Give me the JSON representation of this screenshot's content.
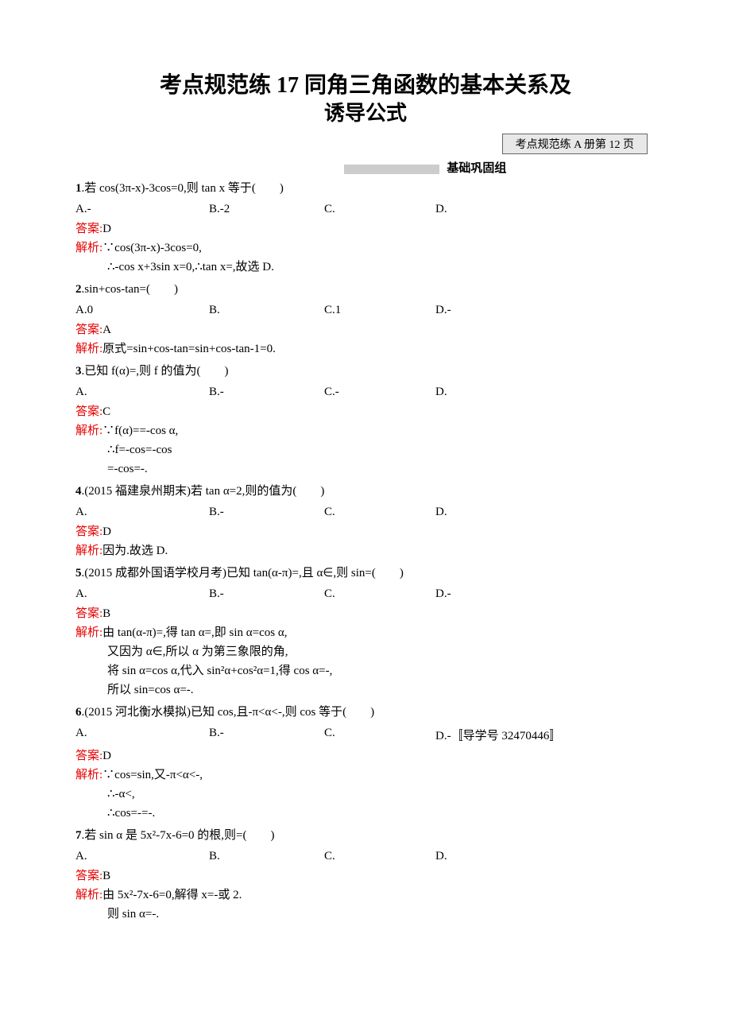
{
  "title_line1": "考点规范练 17   同角三角函数的基本关系及",
  "title_line2": "诱导公式",
  "ref_box": "考点规范练 A 册第 12 页",
  "section_header": "基础巩固组",
  "questions": [
    {
      "num": "1",
      "stem": ".若 cos(3π-x)-3cos=0,则 tan x 等于(　　)",
      "choices": {
        "a": "A.-",
        "b": "B.-2",
        "c": "C.",
        "d": "D."
      },
      "answer_label": "答案:",
      "answer": "D",
      "explain_label": "解析:",
      "explain_first": "∵cos(3π-x)-3cos=0,",
      "explain_rest": [
        "∴-cos x+3sin x=0,∴tan x=,故选 D."
      ]
    },
    {
      "num": "2",
      "stem": ".sin+cos-tan=(　　)",
      "choices": {
        "a": "A.0",
        "b": "B.",
        "c": "C.1",
        "d": "D.-"
      },
      "answer_label": "答案:",
      "answer": "A",
      "explain_label": "解析:",
      "explain_first": "原式=sin+cos-tan=sin+cos-tan-1=0.",
      "explain_rest": []
    },
    {
      "num": "3",
      "stem": ".已知 f(α)=,则 f 的值为(　　)",
      "choices": {
        "a": "A.",
        "b": "B.-",
        "c": "C.-",
        "d": "D."
      },
      "answer_label": "答案:",
      "answer": "C",
      "explain_label": "解析:",
      "explain_first": "∵f(α)==-cos α,",
      "explain_rest": [
        "∴f=-cos=-cos",
        "=-cos=-."
      ]
    },
    {
      "num": "4",
      "stem": ".(2015 福建泉州期末)若 tan α=2,则的值为(　　)",
      "choices": {
        "a": "A.",
        "b": "B.-",
        "c": "C.",
        "d": "D."
      },
      "answer_label": "答案:",
      "answer": "D",
      "explain_label": "解析:",
      "explain_first": "因为.故选 D.",
      "explain_rest": []
    },
    {
      "num": "5",
      "stem": ".(2015 成都外国语学校月考)已知 tan(α-π)=,且 α∈,则 sin=(　　)",
      "choices": {
        "a": "A.",
        "b": "B.-",
        "c": "C.",
        "d": "D.-"
      },
      "answer_label": "答案:",
      "answer": "B",
      "explain_label": "解析:",
      "explain_first": "由 tan(α-π)=,得 tan α=,即 sin α=cos α,",
      "explain_rest": [
        "又因为 α∈,所以 α 为第三象限的角,",
        "将 sin α=cos α,代入 sin²α+cos²α=1,得 cos α=-,",
        "所以 sin=cos α=-."
      ]
    },
    {
      "num": "6",
      "stem": ".(2015 河北衡水模拟)已知 cos,且-π<α<-,则 cos 等于(　　)",
      "choices": {
        "a": "A.",
        "b": "B.-",
        "c": "C.",
        "d": "D.-〚导学号 32470446〛"
      },
      "answer_label": "答案:",
      "answer": "D",
      "explain_label": "解析:",
      "explain_first": "∵cos=sin,又-π<α<-,",
      "explain_rest": [
        "∴-α<,",
        "∴cos=-=-."
      ]
    },
    {
      "num": "7",
      "stem": ".若 sin α 是 5x²-7x-6=0 的根,则=(　　)",
      "choices": {
        "a": "A.",
        "b": "B.",
        "c": "C.",
        "d": "D."
      },
      "answer_label": "答案:",
      "answer": "B",
      "explain_label": "解析:",
      "explain_first": "由 5x²-7x-6=0,解得 x=-或 2.",
      "explain_rest": [
        "则 sin α=-."
      ]
    }
  ]
}
